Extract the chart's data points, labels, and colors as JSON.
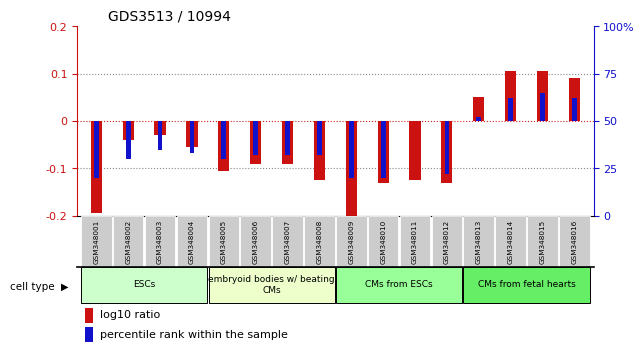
{
  "title": "GDS3513 / 10994",
  "samples": [
    "GSM348001",
    "GSM348002",
    "GSM348003",
    "GSM348004",
    "GSM348005",
    "GSM348006",
    "GSM348007",
    "GSM348008",
    "GSM348009",
    "GSM348010",
    "GSM348011",
    "GSM348012",
    "GSM348013",
    "GSM348014",
    "GSM348015",
    "GSM348016"
  ],
  "log10_ratio": [
    -0.195,
    -0.04,
    -0.03,
    -0.055,
    -0.105,
    -0.09,
    -0.09,
    -0.125,
    -0.205,
    -0.13,
    -0.125,
    -0.13,
    0.05,
    0.105,
    0.105,
    0.09
  ],
  "percentile_rank": [
    20,
    30,
    35,
    33,
    30,
    32,
    32,
    32,
    20,
    20,
    50,
    22,
    52,
    62,
    65,
    62
  ],
  "cell_groups": [
    {
      "label": "ESCs",
      "start": 0,
      "end": 3,
      "color": "#ccffcc"
    },
    {
      "label": "embryoid bodies w/ beating\nCMs",
      "start": 4,
      "end": 7,
      "color": "#eeffcc"
    },
    {
      "label": "CMs from ESCs",
      "start": 8,
      "end": 11,
      "color": "#99ff99"
    },
    {
      "label": "CMs from fetal hearts",
      "start": 12,
      "end": 15,
      "color": "#66ee66"
    }
  ],
  "ylim_left": [
    -0.2,
    0.2
  ],
  "ylim_right": [
    0,
    100
  ],
  "yticks_left": [
    -0.2,
    -0.1,
    0.0,
    0.1,
    0.2
  ],
  "yticks_right": [
    0,
    25,
    50,
    75,
    100
  ],
  "ytick_labels_left": [
    "-0.2",
    "-0.1",
    "0",
    "0.1",
    "0.2"
  ],
  "ytick_labels_right": [
    "0",
    "25",
    "50",
    "75",
    "100%"
  ],
  "bar_color_red": "#cc1111",
  "bar_color_blue": "#1111cc",
  "grid_color": "#888888",
  "zero_line_color": "#cc2222",
  "sample_bg_color": "#cccccc",
  "legend_label_red": "log10 ratio",
  "legend_label_blue": "percentile rank within the sample",
  "cell_type_label": "cell type"
}
